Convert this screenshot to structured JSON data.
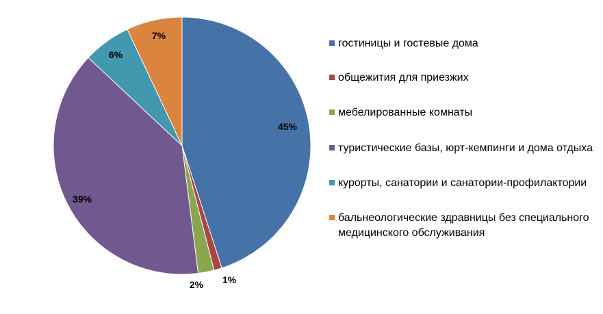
{
  "chart_data": {
    "type": "pie",
    "start": "top, clockwise",
    "legend_position": "right",
    "slices": [
      {
        "label": "гостиницы и гостевые дома",
        "value": 45,
        "data_label": "45%",
        "color": "#4572A7"
      },
      {
        "label": "общежития для приезжих",
        "value": 1,
        "data_label": "1%",
        "color": "#AA4643"
      },
      {
        "label": "мебелированные комнаты",
        "value": 2,
        "data_label": "2%",
        "color": "#89A54E"
      },
      {
        "label": "туристические базы, юрт-кемпинги и дома отдыха",
        "value": 39,
        "data_label": "39%",
        "color": "#71588F"
      },
      {
        "label": "курорты, санатории и санатории-профилактории",
        "value": 6,
        "data_label": "6%",
        "color": "#4198AF"
      },
      {
        "label": "бальнеологические здравницы без специального медицинского обслуживания",
        "value": 7,
        "data_label": "7%",
        "color": "#DB843D"
      }
    ]
  }
}
